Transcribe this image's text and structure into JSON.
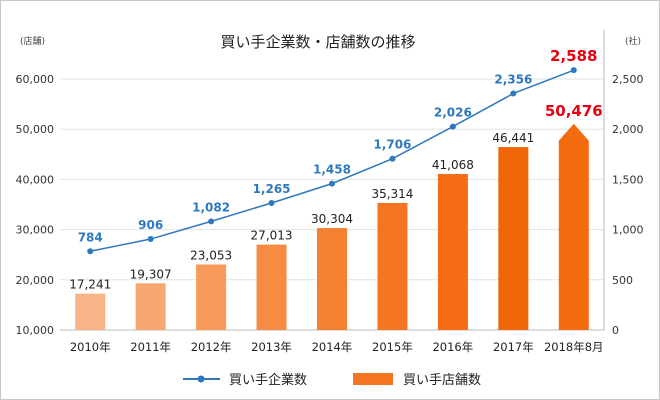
{
  "chart_data": {
    "type": "bar",
    "title": "買い手企業数・店舗数の推移",
    "categories": [
      "2010年",
      "2011年",
      "2012年",
      "2013年",
      "2014年",
      "2015年",
      "2016年",
      "2017年",
      "2018年8月"
    ],
    "y_left_unit": "(店舗)",
    "y_right_unit": "(社)",
    "y_left_ticks": [
      "10,000",
      "20,000",
      "30,000",
      "40,000",
      "50,000",
      "60,000"
    ],
    "y_right_ticks": [
      "0",
      "500",
      "1,000",
      "1,500",
      "2,000",
      "2,500"
    ],
    "y_left_lim": [
      10000,
      60000
    ],
    "y_right_lim": [
      0,
      2500
    ],
    "grid": true,
    "legend_position": "bottom",
    "series": [
      {
        "name": "買い手店舗数",
        "kind": "bar",
        "axis": "left",
        "values": [
          17241,
          19307,
          23053,
          27013,
          30304,
          35314,
          41068,
          46441,
          50476
        ],
        "labels": [
          "17,241",
          "19,307",
          "23,053",
          "27,013",
          "30,304",
          "35,314",
          "41,068",
          "46,441",
          "50,476"
        ],
        "colors": [
          "#f7b486",
          "#f7a870",
          "#f79a5a",
          "#f68c44",
          "#f58031",
          "#f57522",
          "#f46c14",
          "#f06606",
          "#f36a0f"
        ],
        "legend_color": "#f57522",
        "label_color": "#222222",
        "highlight_label_color": "#e60012",
        "last_is_arrow": true
      },
      {
        "name": "買い手企業数",
        "kind": "line",
        "axis": "right",
        "values": [
          784,
          906,
          1082,
          1265,
          1458,
          1706,
          2026,
          2356,
          2588
        ],
        "labels": [
          "784",
          "906",
          "1,082",
          "1,265",
          "1,458",
          "1,706",
          "2,026",
          "2,356",
          "2,588"
        ],
        "color": "#2e78be",
        "highlight_label_color": "#e60012"
      }
    ]
  }
}
